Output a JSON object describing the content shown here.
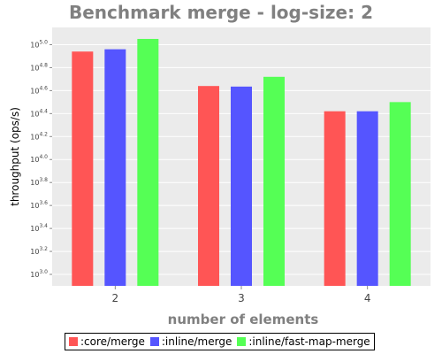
{
  "chart_data": {
    "type": "bar",
    "title": "Benchmark merge - log-size: 2",
    "xlabel": "number of elements",
    "ylabel": "throughput (ops/s)",
    "categories": [
      "2",
      "3",
      "4"
    ],
    "y_scale": "log10",
    "ylim_log10": [
      2.9,
      5.15
    ],
    "y_ticks": [
      {
        "base": "10",
        "exp": "3.0",
        "value_log10": 3.0
      },
      {
        "base": "10",
        "exp": "3.2",
        "value_log10": 3.2
      },
      {
        "base": "10",
        "exp": "3.4",
        "value_log10": 3.4
      },
      {
        "base": "10",
        "exp": "3.6",
        "value_log10": 3.6
      },
      {
        "base": "10",
        "exp": "3.8",
        "value_log10": 3.8
      },
      {
        "base": "10",
        "exp": "4.0",
        "value_log10": 4.0
      },
      {
        "base": "10",
        "exp": "4.2",
        "value_log10": 4.2
      },
      {
        "base": "10",
        "exp": "4.4",
        "value_log10": 4.4
      },
      {
        "base": "10",
        "exp": "4.6",
        "value_log10": 4.6
      },
      {
        "base": "10",
        "exp": "4.8",
        "value_log10": 4.8
      },
      {
        "base": "10",
        "exp": "5.0",
        "value_log10": 5.0
      }
    ],
    "series": [
      {
        "name": ":core/merge",
        "color": "#ff5555",
        "values_log10": [
          4.94,
          4.64,
          4.42
        ]
      },
      {
        "name": ":inline/merge",
        "color": "#5555ff",
        "values_log10": [
          4.96,
          4.635,
          4.42
        ]
      },
      {
        "name": ":inline/fast-map-merge",
        "color": "#55ff55",
        "values_log10": [
          5.05,
          4.72,
          4.5
        ]
      }
    ],
    "grid": true,
    "legend_position": "bottom"
  }
}
